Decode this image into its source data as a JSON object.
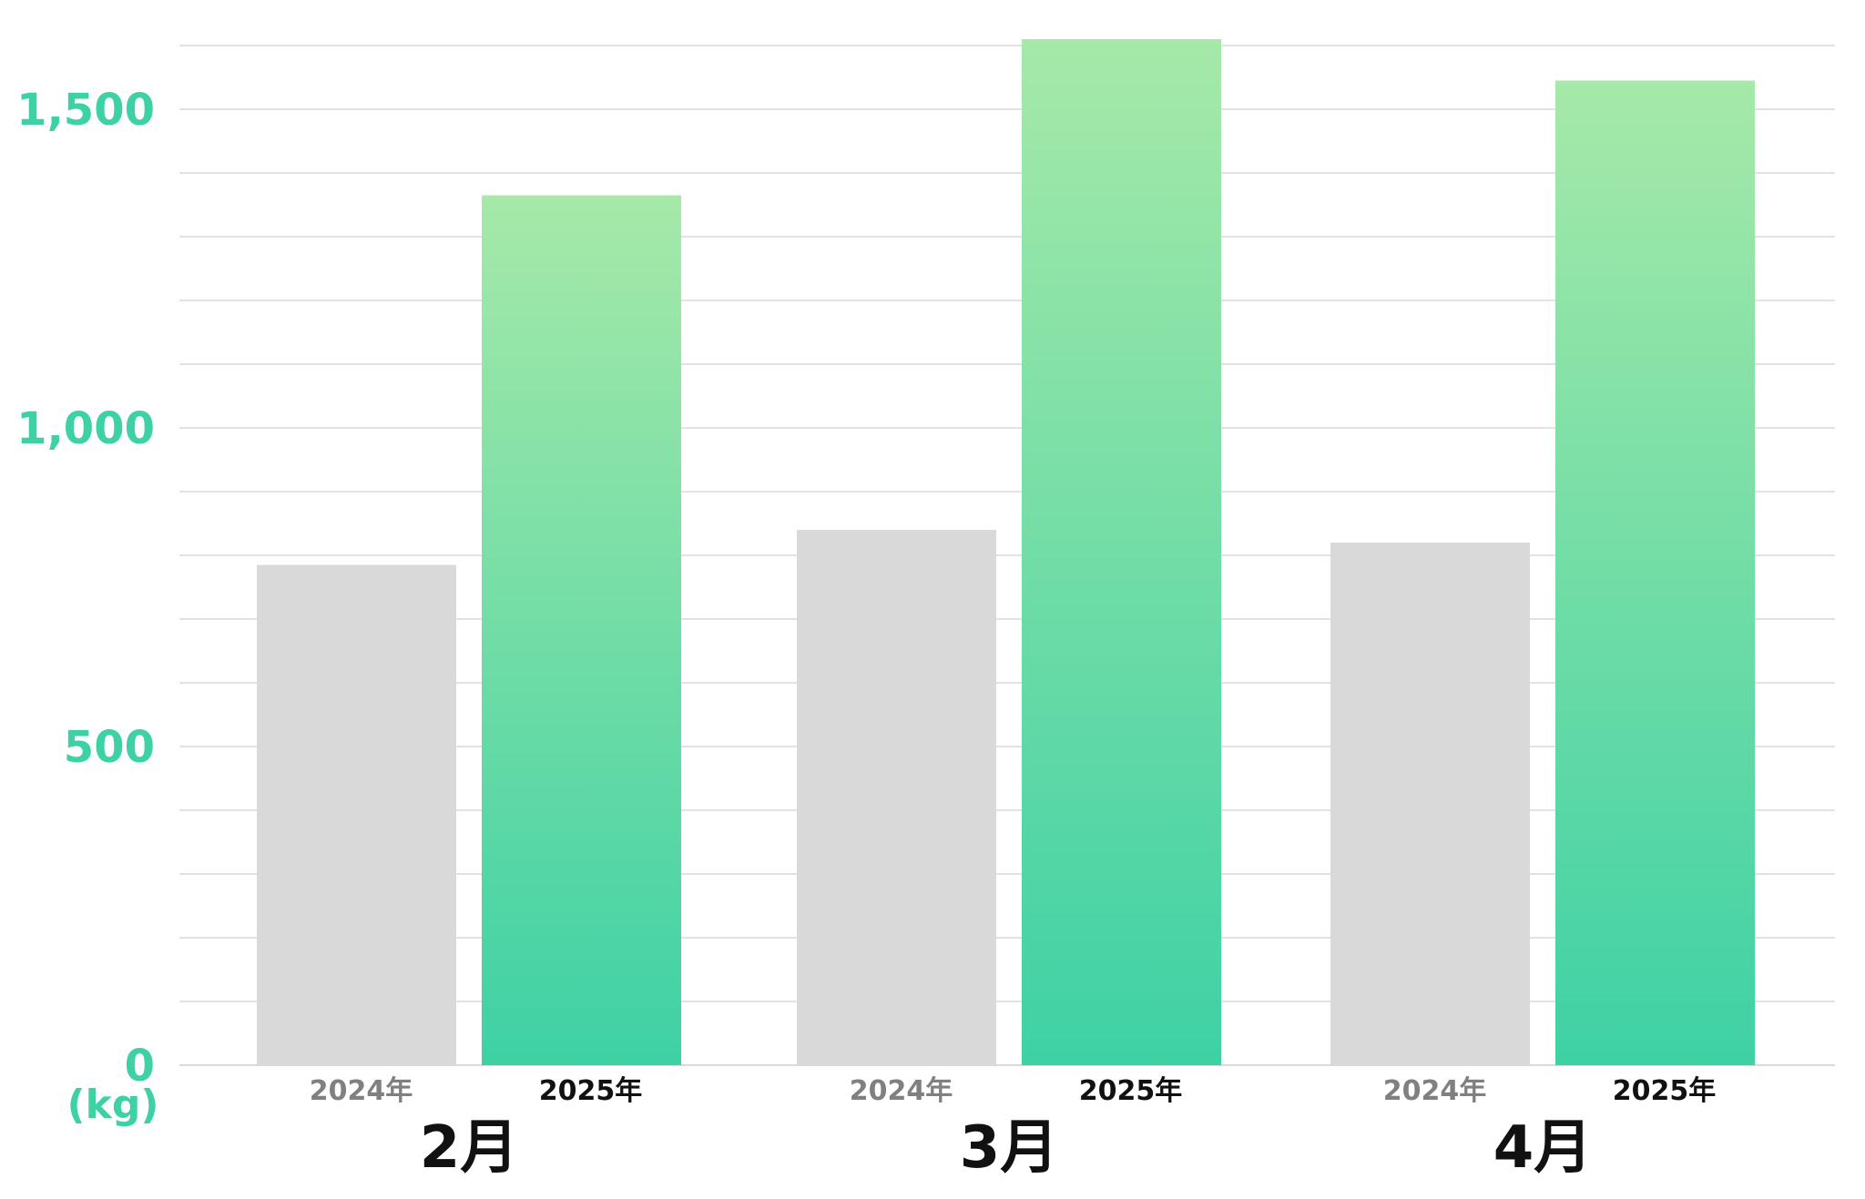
{
  "chart_data": {
    "type": "bar",
    "categories": [
      "2月",
      "3月",
      "4月"
    ],
    "series": [
      {
        "name": "2024年",
        "values": [
          785,
          840,
          820
        ]
      },
      {
        "name": "2025年",
        "values": [
          1365,
          1610,
          1545
        ]
      }
    ],
    "ylabel": "(kg)",
    "y_ticks": [
      "0",
      "500",
      "1,000",
      "1,500"
    ],
    "ylim": [
      0,
      1625
    ],
    "grid": true,
    "legend": "below each bar"
  },
  "colors": {
    "accent": "#3ed1a5",
    "bar_2024": "#d9d9d9",
    "bar_2025_top": "#a6e9a8",
    "bar_2025_bottom": "#3ed1a5",
    "grid": "#d9d9d9",
    "label_2024": "#808080",
    "label_2025": "#111111",
    "category_text": "#111111"
  }
}
